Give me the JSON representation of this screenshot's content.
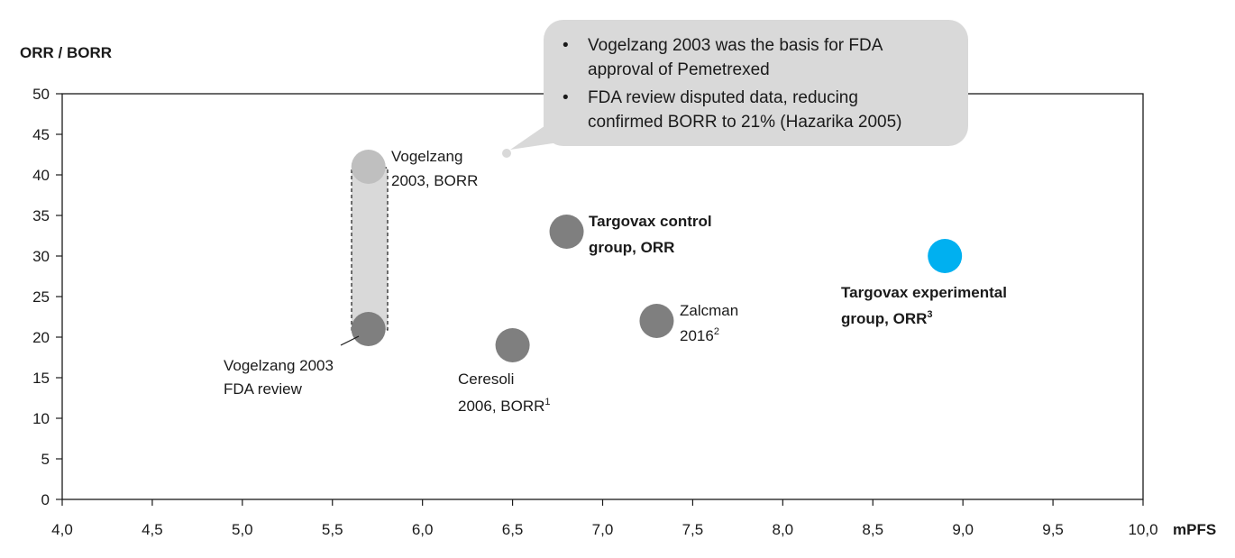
{
  "chart_data": {
    "type": "scatter",
    "xlabel": "mPFS",
    "ylabel": "ORR / BORR",
    "xlim": [
      4.0,
      10.0
    ],
    "ylim": [
      0,
      50
    ],
    "x_ticks": [
      "4,0",
      "4,5",
      "5,0",
      "5,5",
      "6,0",
      "6,5",
      "7,0",
      "7,5",
      "8,0",
      "8,5",
      "9,0",
      "9,5",
      "10,0"
    ],
    "y_ticks": [
      "0",
      "5",
      "10",
      "15",
      "20",
      "25",
      "30",
      "35",
      "40",
      "45",
      "50"
    ],
    "grid": false,
    "points": [
      {
        "x": 5.7,
        "y": 41,
        "color": "#bfbfbf",
        "label": [
          "Vogelzang",
          "2003, BORR"
        ],
        "bold": false
      },
      {
        "x": 5.7,
        "y": 21,
        "color": "#7f7f7f",
        "label": [
          "Vogelzang 2003",
          "FDA review"
        ],
        "bold": false
      },
      {
        "x": 6.5,
        "y": 19,
        "color": "#7f7f7f",
        "label": [
          "Ceresoli",
          "2006, BORR",
          "1"
        ],
        "bold": false
      },
      {
        "x": 6.8,
        "y": 33,
        "color": "#7f7f7f",
        "label": [
          "Targovax control",
          "group, ORR"
        ],
        "bold": true
      },
      {
        "x": 7.3,
        "y": 22,
        "color": "#7f7f7f",
        "label": [
          "Zalcman",
          "2016",
          "2"
        ],
        "bold": false
      },
      {
        "x": 8.9,
        "y": 30,
        "color": "#00b0f0",
        "label": [
          "Targovax experimental",
          "group, ORR",
          "3"
        ],
        "bold": true
      }
    ],
    "annotations": [
      "Vogelzang 2003 was the basis for FDA",
      "approval of Pemetrexed",
      "FDA review disputed data, reducing",
      "confirmed BORR to 21% (Hazarika 2005)"
    ]
  }
}
